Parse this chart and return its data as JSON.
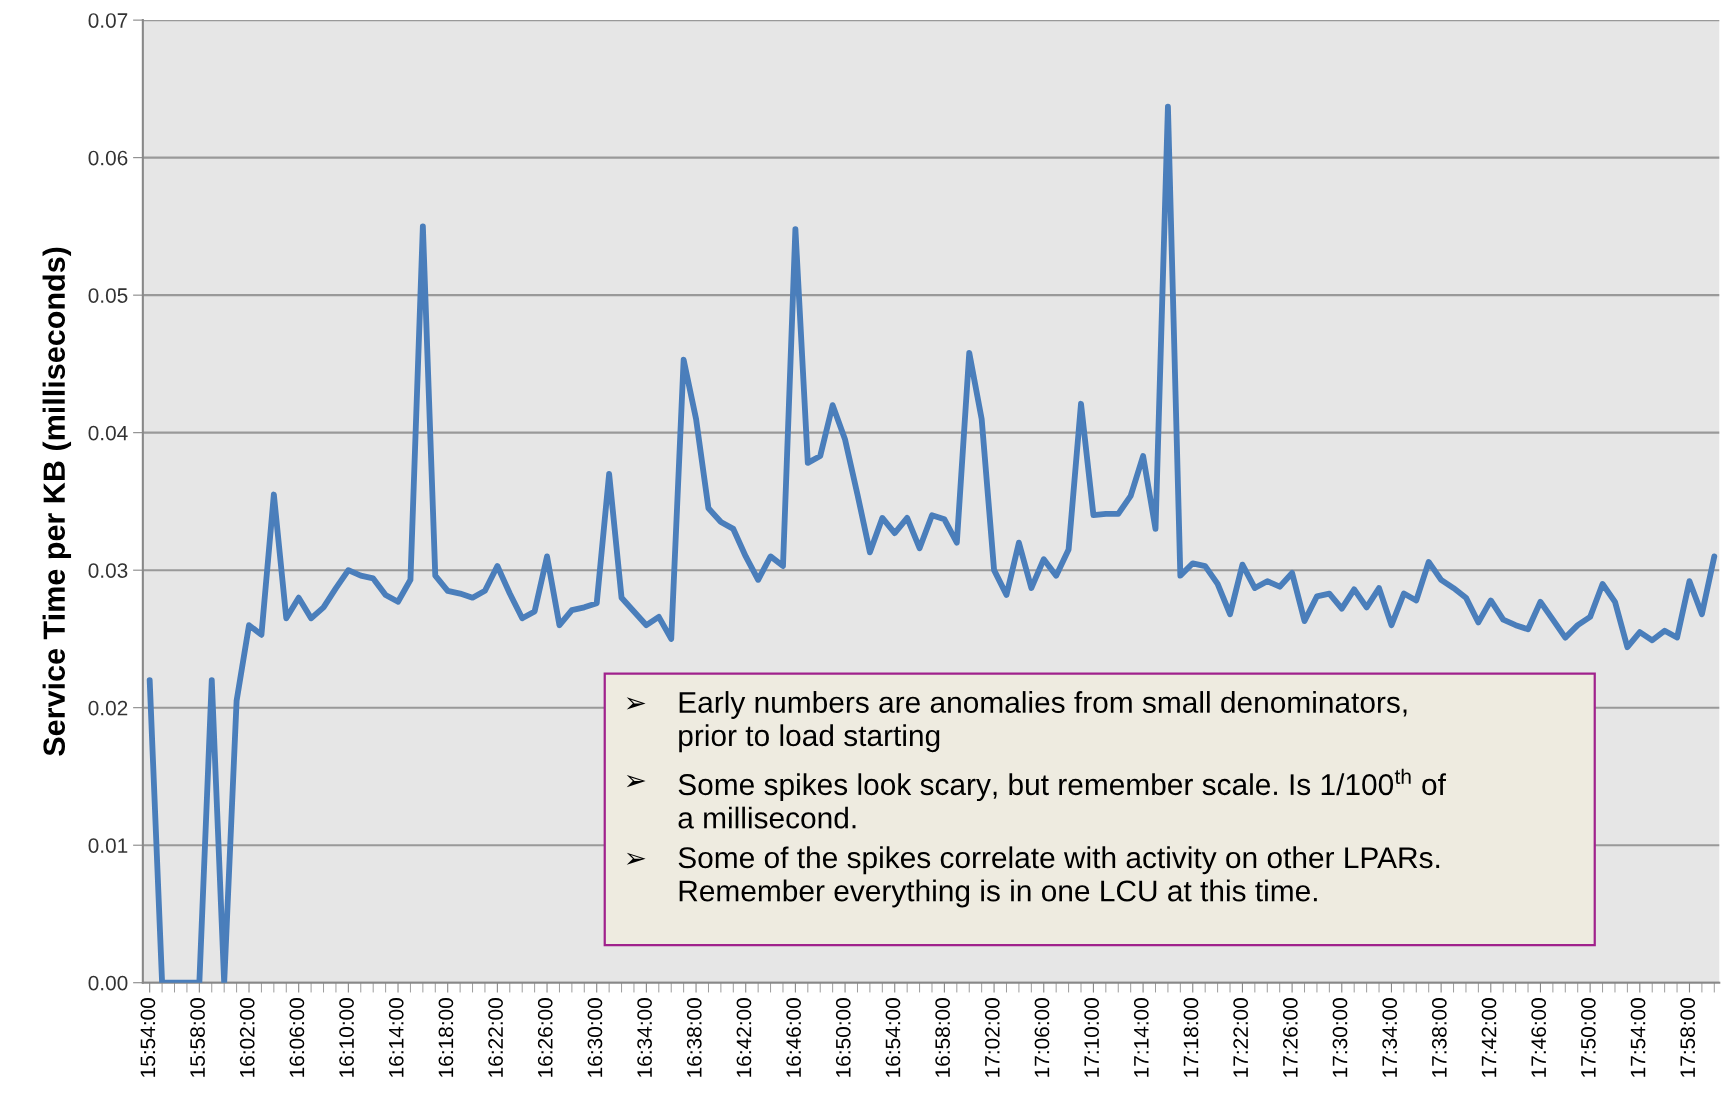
{
  "chart_data": {
    "type": "line",
    "ylabel": "Service Time per KB (milliseconds)",
    "categories": [
      "15:54:00",
      null,
      null,
      null,
      "15:58:00",
      null,
      null,
      null,
      "16:02:00",
      null,
      null,
      null,
      "16:06:00",
      null,
      null,
      null,
      "16:10:00",
      null,
      null,
      null,
      "16:14:00",
      null,
      null,
      null,
      "16:18:00",
      null,
      null,
      null,
      "16:22:00",
      null,
      null,
      null,
      "16:26:00",
      null,
      null,
      null,
      "16:30:00",
      null,
      null,
      null,
      "16:34:00",
      null,
      null,
      null,
      "16:38:00",
      null,
      null,
      null,
      "16:42:00",
      null,
      null,
      null,
      "16:46:00",
      null,
      null,
      null,
      "16:50:00",
      null,
      null,
      null,
      "16:54:00",
      null,
      null,
      null,
      "16:58:00",
      null,
      null,
      null,
      "17:02:00",
      null,
      null,
      null,
      "17:06:00",
      null,
      null,
      null,
      "17:10:00",
      null,
      null,
      null,
      "17:14:00",
      null,
      null,
      null,
      "17:18:00",
      null,
      null,
      null,
      "17:22:00",
      null,
      null,
      null,
      "17:26:00",
      null,
      null,
      null,
      "17:30:00",
      null,
      null,
      null,
      "17:34:00",
      null,
      null,
      null,
      "17:38:00",
      null,
      null,
      null,
      "17:42:00",
      null,
      null,
      null,
      "17:46:00",
      null,
      null,
      null,
      "17:50:00",
      null,
      null,
      null,
      "17:54:00",
      null,
      null,
      null,
      "17:58:00",
      null,
      null
    ],
    "series": [
      {
        "color": "#4a7ebb",
        "values": [
          0.022,
          0,
          0,
          0,
          0,
          0.022,
          0,
          0.0205,
          0.026,
          0.0253,
          0.0355,
          0.0265,
          0.028,
          0.0265,
          0.0273,
          0.0287,
          0.03,
          0.0296,
          0.0294,
          0.0282,
          0.0277,
          0.0293,
          0.055,
          0.0296,
          0.0285,
          0.0283,
          0.028,
          0.0285,
          0.0303,
          0.0283,
          0.0265,
          0.027,
          0.031,
          0.026,
          0.0271,
          0.0273,
          0.0276,
          0.037,
          0.028,
          0.027,
          0.026,
          0.0266,
          0.025,
          0.0453,
          0.041,
          0.0345,
          0.0335,
          0.033,
          0.031,
          0.0293,
          0.031,
          0.0303,
          0.0548,
          0.0378,
          0.0383,
          0.042,
          0.0395,
          0.0355,
          0.0313,
          0.0338,
          0.0327,
          0.0338,
          0.0316,
          0.034,
          0.0337,
          0.032,
          0.0458,
          0.041,
          0.03,
          0.0282,
          0.032,
          0.0287,
          0.0308,
          0.0296,
          0.0315,
          0.0421,
          0.034,
          0.0341,
          0.0341,
          0.0354,
          0.0383,
          0.033,
          0.0637,
          0.0296,
          0.0305,
          0.0303,
          0.029,
          0.0268,
          0.0304,
          0.0287,
          0.0292,
          0.0288,
          0.0298,
          0.0263,
          0.0281,
          0.0283,
          0.0272,
          0.0286,
          0.0273,
          0.0287,
          0.026,
          0.0283,
          0.0278,
          0.0306,
          0.0293,
          0.0287,
          0.028,
          0.0262,
          0.0278,
          0.0264,
          0.026,
          0.0257,
          0.0277,
          0.0264,
          0.0251,
          0.026,
          0.0266,
          0.029,
          0.0277,
          0.0244,
          0.0255,
          0.0249,
          0.0256,
          0.0251,
          0.0292,
          0.0268,
          0.031
        ]
      }
    ],
    "ylim": [
      0,
      0.07
    ],
    "yticks": [
      {
        "value": 0,
        "label": "0.00"
      },
      0.01,
      0.02,
      0.03,
      0.04,
      0.05,
      0.06,
      0.07
    ],
    "grid": "y",
    "line_style": "solid",
    "marker": "none",
    "annotations": [
      "➢ Early numbers are anomalies from small denominators,\nprior to load starting",
      "➢ Some spikes look scary, but remember scale. Is 1/100$^{th}$ of\na millisecond.",
      "➢ Some of the spikes correlate with activity on other LPARs.\nRemember everything is in one LCU at this time."
    ]
  }
}
